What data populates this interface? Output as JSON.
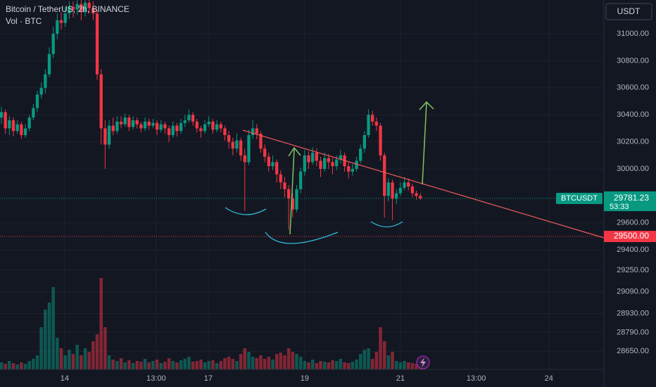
{
  "chart_data": {
    "type": "candlestick",
    "title": "Bitcoin / TetherUS, 2h, BINANCE",
    "volume_label": "Vol · BTC",
    "currency": "USDT",
    "up_color": "#089981",
    "down_color": "#f23645",
    "grid": true,
    "ylim": [
      28516,
      31250
    ],
    "yticks": [
      {
        "value": 31000,
        "label": "31000.00"
      },
      {
        "value": 30800,
        "label": "30800.00"
      },
      {
        "value": 30600,
        "label": "30600.00"
      },
      {
        "value": 30400,
        "label": "30400.00"
      },
      {
        "value": 30200,
        "label": "30200.00"
      },
      {
        "value": 30000,
        "label": "30000.00"
      },
      {
        "value": 29600,
        "label": "29600.00"
      },
      {
        "value": 29400,
        "label": "29400.00"
      },
      {
        "value": 29250,
        "label": "29250.00"
      },
      {
        "value": 29090,
        "label": "29090.00"
      },
      {
        "value": 28930,
        "label": "28930.00"
      },
      {
        "value": 28790,
        "label": "28790.00"
      },
      {
        "value": 28650,
        "label": "28650.00"
      }
    ],
    "xlim": [
      -0.35,
      151
    ],
    "xticks": [
      {
        "value": 15.85,
        "label": "14"
      },
      {
        "value": 38.8,
        "label": "13:00"
      },
      {
        "value": 51.85,
        "label": "17"
      },
      {
        "value": 76,
        "label": "19"
      },
      {
        "value": 100,
        "label": "21"
      },
      {
        "value": 119,
        "label": "13:00"
      },
      {
        "value": 137.2,
        "label": "24"
      }
    ],
    "price_lines": [
      {
        "value": 29781.23,
        "symbol": "BTCUSDT",
        "countdown": "53:33",
        "color": "#089981"
      },
      {
        "value": 29500,
        "label": "29500.00",
        "color": "#f23645"
      }
    ],
    "vlim": [
      0,
      140
    ],
    "candles": [
      [
        30380,
        30460,
        30330,
        30420
      ],
      [
        30420,
        30440,
        30260,
        30300
      ],
      [
        30300,
        30390,
        30250,
        30360
      ],
      [
        30360,
        30380,
        30240,
        30280
      ],
      [
        30280,
        30360,
        30260,
        30330
      ],
      [
        30330,
        30350,
        30220,
        30250
      ],
      [
        30250,
        30330,
        30230,
        30300
      ],
      [
        30300,
        30400,
        30280,
        30380
      ],
      [
        30380,
        30480,
        30360,
        30450
      ],
      [
        30450,
        30580,
        30420,
        30550
      ],
      [
        30550,
        30640,
        30520,
        30600
      ],
      [
        30600,
        30740,
        30560,
        30700
      ],
      [
        30700,
        30900,
        30680,
        30850
      ],
      [
        30850,
        31050,
        30820,
        31000
      ],
      [
        31000,
        31150,
        30960,
        31100
      ],
      [
        31100,
        31160,
        31030,
        31080
      ],
      [
        31080,
        31200,
        31050,
        31150
      ],
      [
        31150,
        31240,
        31110,
        31200
      ],
      [
        31200,
        31240,
        31120,
        31180
      ],
      [
        31180,
        31250,
        31140,
        31220
      ],
      [
        31220,
        31250,
        31100,
        31160
      ],
      [
        31160,
        31250,
        31130,
        31230
      ],
      [
        31230,
        31250,
        31150,
        31190
      ],
      [
        31190,
        31240,
        31100,
        31150
      ],
      [
        31150,
        31180,
        30660,
        30700
      ],
      [
        30700,
        30740,
        30180,
        30300
      ],
      [
        30300,
        30360,
        30000,
        30180
      ],
      [
        30180,
        30360,
        30150,
        30320
      ],
      [
        30320,
        30380,
        30250,
        30280
      ],
      [
        30280,
        30390,
        30260,
        30350
      ],
      [
        30350,
        30390,
        30300,
        30330
      ],
      [
        30330,
        30410,
        30310,
        30380
      ],
      [
        30380,
        30400,
        30280,
        30310
      ],
      [
        30310,
        30390,
        30290,
        30360
      ],
      [
        30360,
        30380,
        30300,
        30330
      ],
      [
        30330,
        30350,
        30270,
        30300
      ],
      [
        30300,
        30380,
        30280,
        30350
      ],
      [
        30350,
        30370,
        30290,
        30320
      ],
      [
        30320,
        30370,
        30300,
        30340
      ],
      [
        30340,
        30360,
        30250,
        30290
      ],
      [
        30290,
        30360,
        30270,
        30330
      ],
      [
        30330,
        30350,
        30260,
        30300
      ],
      [
        30300,
        30320,
        30200,
        30250
      ],
      [
        30250,
        30350,
        30230,
        30320
      ],
      [
        30320,
        30340,
        30240,
        30280
      ],
      [
        30280,
        30370,
        30260,
        30340
      ],
      [
        30340,
        30400,
        30310,
        30360
      ],
      [
        30360,
        30440,
        30340,
        30400
      ],
      [
        30400,
        30420,
        30320,
        30350
      ],
      [
        30350,
        30370,
        30270,
        30300
      ],
      [
        30300,
        30320,
        30230,
        30280
      ],
      [
        30280,
        30360,
        30260,
        30330
      ],
      [
        30330,
        30390,
        30310,
        30350
      ],
      [
        30350,
        30370,
        30260,
        30290
      ],
      [
        30290,
        30360,
        30270,
        30330
      ],
      [
        30330,
        30350,
        30270,
        30300
      ],
      [
        30300,
        30320,
        30210,
        30250
      ],
      [
        30250,
        30280,
        30150,
        30200
      ],
      [
        30200,
        30230,
        30100,
        30150
      ],
      [
        30150,
        30260,
        30120,
        30210
      ],
      [
        30210,
        30230,
        30060,
        30100
      ],
      [
        30100,
        30150,
        29690,
        30050
      ],
      [
        30050,
        30290,
        30030,
        30250
      ],
      [
        30250,
        30360,
        30220,
        30300
      ],
      [
        30300,
        30330,
        30220,
        30260
      ],
      [
        30260,
        30280,
        30120,
        30150
      ],
      [
        30150,
        30180,
        30050,
        30090
      ],
      [
        30090,
        30120,
        29980,
        30020
      ],
      [
        30020,
        30100,
        29990,
        30050
      ],
      [
        30050,
        30070,
        29900,
        29960
      ],
      [
        29960,
        29990,
        29850,
        29900
      ],
      [
        29900,
        29940,
        29790,
        29850
      ],
      [
        29850,
        29880,
        29550,
        29780
      ],
      [
        29780,
        29820,
        29640,
        29700
      ],
      [
        29700,
        29880,
        29680,
        29850
      ],
      [
        29850,
        30010,
        29820,
        29980
      ],
      [
        29980,
        30140,
        29950,
        30100
      ],
      [
        30100,
        30130,
        30000,
        30050
      ],
      [
        30050,
        30160,
        30030,
        30120
      ],
      [
        30120,
        30150,
        30020,
        30060
      ],
      [
        30060,
        30090,
        29940,
        30000
      ],
      [
        30000,
        30120,
        29980,
        30080
      ],
      [
        30080,
        30110,
        30000,
        30050
      ],
      [
        30050,
        30080,
        29960,
        30020
      ],
      [
        30020,
        30100,
        29990,
        30070
      ],
      [
        30070,
        30140,
        30040,
        30100
      ],
      [
        30100,
        30120,
        29980,
        30020
      ],
      [
        30020,
        30050,
        29930,
        29980
      ],
      [
        29980,
        30040,
        29950,
        30000
      ],
      [
        30000,
        30090,
        29980,
        30060
      ],
      [
        30060,
        30180,
        30040,
        30150
      ],
      [
        30150,
        30280,
        30120,
        30250
      ],
      [
        30250,
        30440,
        30230,
        30400
      ],
      [
        30400,
        30430,
        30320,
        30350
      ],
      [
        30350,
        30380,
        30280,
        30320
      ],
      [
        30320,
        30340,
        30060,
        30100
      ],
      [
        30100,
        30120,
        29640,
        29800
      ],
      [
        29800,
        29930,
        29760,
        29900
      ],
      [
        29900,
        29920,
        29620,
        29780
      ],
      [
        29780,
        29850,
        29740,
        29820
      ],
      [
        29820,
        29900,
        29800,
        29860
      ],
      [
        29860,
        29940,
        29840,
        29900
      ],
      [
        29900,
        29930,
        29840,
        29870
      ],
      [
        29870,
        29890,
        29790,
        29820
      ],
      [
        29820,
        29840,
        29770,
        29800
      ],
      [
        29800,
        29820,
        29770,
        29781.23
      ]
    ],
    "volume": [
      10,
      8,
      12,
      9,
      7,
      10,
      8,
      12,
      15,
      20,
      60,
      85,
      95,
      117,
      45,
      30,
      20,
      28,
      22,
      35,
      20,
      30,
      25,
      40,
      50,
      130,
      60,
      20,
      14,
      12,
      16,
      10,
      13,
      9,
      12,
      11,
      15,
      10,
      12,
      14,
      9,
      11,
      16,
      12,
      10,
      13,
      15,
      18,
      11,
      12,
      14,
      10,
      12,
      13,
      9,
      12,
      16,
      18,
      15,
      12,
      22,
      30,
      25,
      18,
      16,
      20,
      15,
      18,
      14,
      22,
      24,
      20,
      30,
      25,
      22,
      18,
      12,
      10,
      14,
      9,
      12,
      11,
      10,
      13,
      12,
      15,
      10,
      9,
      11,
      14,
      22,
      28,
      30,
      15,
      25,
      60,
      40,
      20,
      25,
      12,
      10,
      12,
      10,
      9,
      8,
      5
    ]
  }
}
